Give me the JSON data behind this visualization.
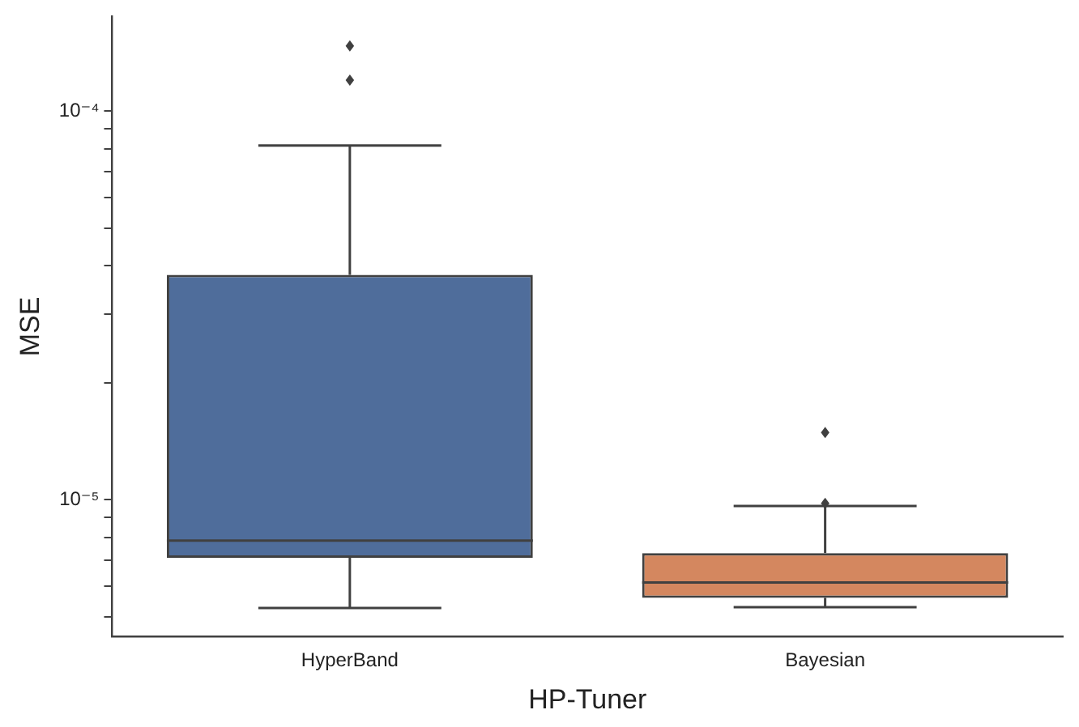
{
  "chart_data": {
    "type": "box",
    "xlabel": "HP-Tuner",
    "ylabel": "MSE",
    "categories": [
      "HyperBand",
      "Bayesian"
    ],
    "colors": [
      "#4f6d9b",
      "#d4875f"
    ],
    "boxes": [
      {
        "low": 5.27e-06,
        "q1": 7.1e-06,
        "median": 7.86e-06,
        "q3": 3.79e-05,
        "high": 8.15e-05,
        "outliers": [
          0.00012,
          0.000147
        ]
      },
      {
        "low": 5.3e-06,
        "q1": 5.6e-06,
        "median": 6.13e-06,
        "q3": 7.3e-06,
        "high": 9.65e-06,
        "outliers": [
          9.8e-06,
          1.49e-05
        ]
      }
    ],
    "log": "y",
    "ylim": [
      4.45e-06,
      0.000175
    ],
    "yticks": [
      {
        "value": 5e-06,
        "label": null
      },
      {
        "value": 6e-06,
        "label": null
      },
      {
        "value": 7e-06,
        "label": null
      },
      {
        "value": 8e-06,
        "label": null
      },
      {
        "value": 9e-06,
        "label": null
      },
      {
        "value": 1e-05,
        "label": "10⁻⁵"
      },
      {
        "value": 2e-05,
        "label": null
      },
      {
        "value": 3e-05,
        "label": null
      },
      {
        "value": 4e-05,
        "label": null
      },
      {
        "value": 5e-05,
        "label": null
      },
      {
        "value": 6e-05,
        "label": null
      },
      {
        "value": 7e-05,
        "label": null
      },
      {
        "value": 8e-05,
        "label": null
      },
      {
        "value": 9e-05,
        "label": null
      },
      {
        "value": 0.0001,
        "label": "10⁻⁴"
      }
    ],
    "grid": false,
    "legend": false
  }
}
